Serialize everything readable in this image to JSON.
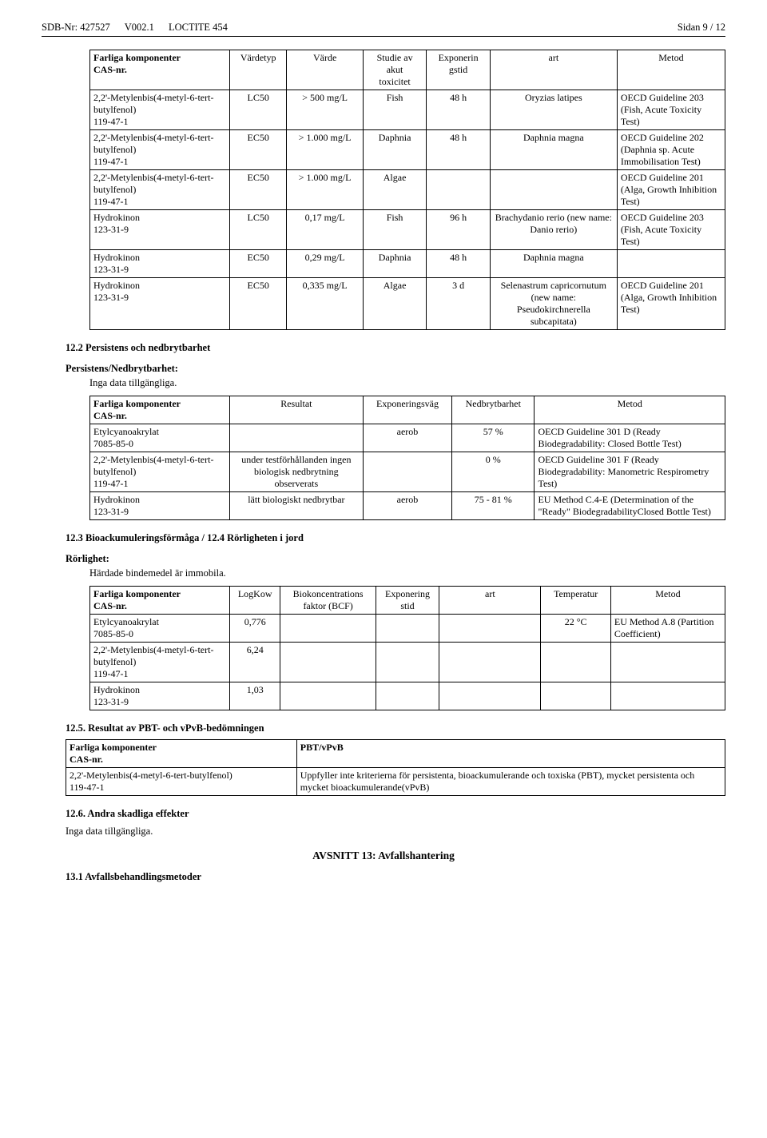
{
  "header": {
    "sdb": "SDB-Nr: 427527",
    "ver": "V002.1",
    "prod": "LOCTITE 454",
    "page": "Sidan 9 / 12"
  },
  "table1": {
    "headers": [
      "Farliga komponenter\nCAS-nr.",
      "Värdetyp",
      "Värde",
      "Studie av\nakut\ntoxicitet",
      "Exponerin\ngstid",
      "art",
      "Metod"
    ],
    "rows": [
      [
        "2,2'-Metylenbis(4-metyl-6-tert-butylfenol)\n119-47-1",
        "LC50",
        "> 500 mg/L",
        "Fish",
        "48 h",
        "Oryzias latipes",
        "OECD Guideline 203 (Fish, Acute Toxicity Test)"
      ],
      [
        "2,2'-Metylenbis(4-metyl-6-tert-butylfenol)\n119-47-1",
        "EC50",
        "> 1.000 mg/L",
        "Daphnia",
        "48 h",
        "Daphnia magna",
        "OECD Guideline 202 (Daphnia sp. Acute Immobilisation Test)"
      ],
      [
        "2,2'-Metylenbis(4-metyl-6-tert-butylfenol)\n119-47-1",
        "EC50",
        "> 1.000 mg/L",
        "Algae",
        "",
        "",
        "OECD Guideline 201 (Alga, Growth Inhibition Test)"
      ],
      [
        "Hydrokinon\n123-31-9",
        "LC50",
        "0,17 mg/L",
        "Fish",
        "96 h",
        "Brachydanio rerio (new name: Danio rerio)",
        "OECD Guideline 203 (Fish, Acute Toxicity Test)"
      ],
      [
        "Hydrokinon\n123-31-9",
        "EC50",
        "0,29 mg/L",
        "Daphnia",
        "48 h",
        "Daphnia magna",
        ""
      ],
      [
        "Hydrokinon\n123-31-9",
        "EC50",
        "0,335 mg/L",
        "Algae",
        "3 d",
        "Selenastrum capricornutum (new name: Pseudokirchnerella subcapitata)",
        "OECD Guideline 201 (Alga, Growth Inhibition Test)"
      ]
    ],
    "colw": [
      "22%",
      "9%",
      "12%",
      "10%",
      "10%",
      "20%",
      "17%"
    ]
  },
  "s12_2": {
    "title": "12.2 Persistens och nedbrytbarhet",
    "sub": "Persistens/Nedbrytbarhet:",
    "txt": "Inga data tillgängliga."
  },
  "table2": {
    "headers": [
      "Farliga komponenter\nCAS-nr.",
      "Resultat",
      "Exponeringsväg",
      "Nedbrytbarhet",
      "Metod"
    ],
    "rows": [
      [
        "Etylcyanoakrylat\n7085-85-0",
        "",
        "aerob",
        "57 %",
        "OECD Guideline 301 D (Ready Biodegradability: Closed Bottle Test)"
      ],
      [
        "2,2'-Metylenbis(4-metyl-6-tert-butylfenol)\n119-47-1",
        "under testförhållanden ingen biologisk nedbrytning observerats",
        "",
        "0 %",
        "OECD Guideline 301 F (Ready Biodegradability: Manometric Respirometry Test)"
      ],
      [
        "Hydrokinon\n123-31-9",
        "lätt biologiskt nedbrytbar",
        "aerob",
        "75 - 81 %",
        "EU Method C.4-E (Determination of the \"Ready\" BiodegradabilityClosed Bottle Test)"
      ]
    ],
    "colw": [
      "22%",
      "21%",
      "14%",
      "13%",
      "30%"
    ]
  },
  "s12_3": {
    "title": "12.3 Bioackumuleringsförmåga / 12.4 Rörligheten i jord",
    "sub": "Rörlighet:",
    "txt": "Härdade bindemedel är immobila."
  },
  "table3": {
    "headers": [
      "Farliga komponenter\nCAS-nr.",
      "LogKow",
      "Biokoncentrations\nfaktor (BCF)",
      "Exponering\nstid",
      "art",
      "Temperatur",
      "Metod"
    ],
    "rows": [
      [
        "Etylcyanoakrylat\n7085-85-0",
        "0,776",
        "",
        "",
        "",
        "22 °C",
        "EU Method A.8 (Partition Coefficient)"
      ],
      [
        "2,2'-Metylenbis(4-metyl-6-tert-butylfenol)\n119-47-1",
        "6,24",
        "",
        "",
        "",
        "",
        ""
      ],
      [
        "Hydrokinon\n123-31-9",
        "1,03",
        "",
        "",
        "",
        "",
        ""
      ]
    ],
    "colw": [
      "22%",
      "8%",
      "15%",
      "10%",
      "16%",
      "11%",
      "18%"
    ]
  },
  "s12_5": {
    "title": "12.5. Resultat av PBT- och vPvB-bedömningen"
  },
  "table4": {
    "headers": [
      "Farliga komponenter\nCAS-nr.",
      "PBT/vPvB"
    ],
    "rows": [
      [
        "2,2'-Metylenbis(4-metyl-6-tert-butylfenol)\n119-47-1",
        "Uppfyller inte kriterierna för persistenta, bioackumulerande och toxiska (PBT), mycket persistenta och mycket bioackumulerande(vPvB)"
      ]
    ],
    "colw": [
      "35%",
      "65%"
    ]
  },
  "s12_6": {
    "title": "12.6. Andra skadliga effekter",
    "txt": "Inga data tillgängliga."
  },
  "s13": {
    "title": "AVSNITT 13: Avfallshantering",
    "sub": "13.1 Avfallsbehandlingsmetoder"
  }
}
